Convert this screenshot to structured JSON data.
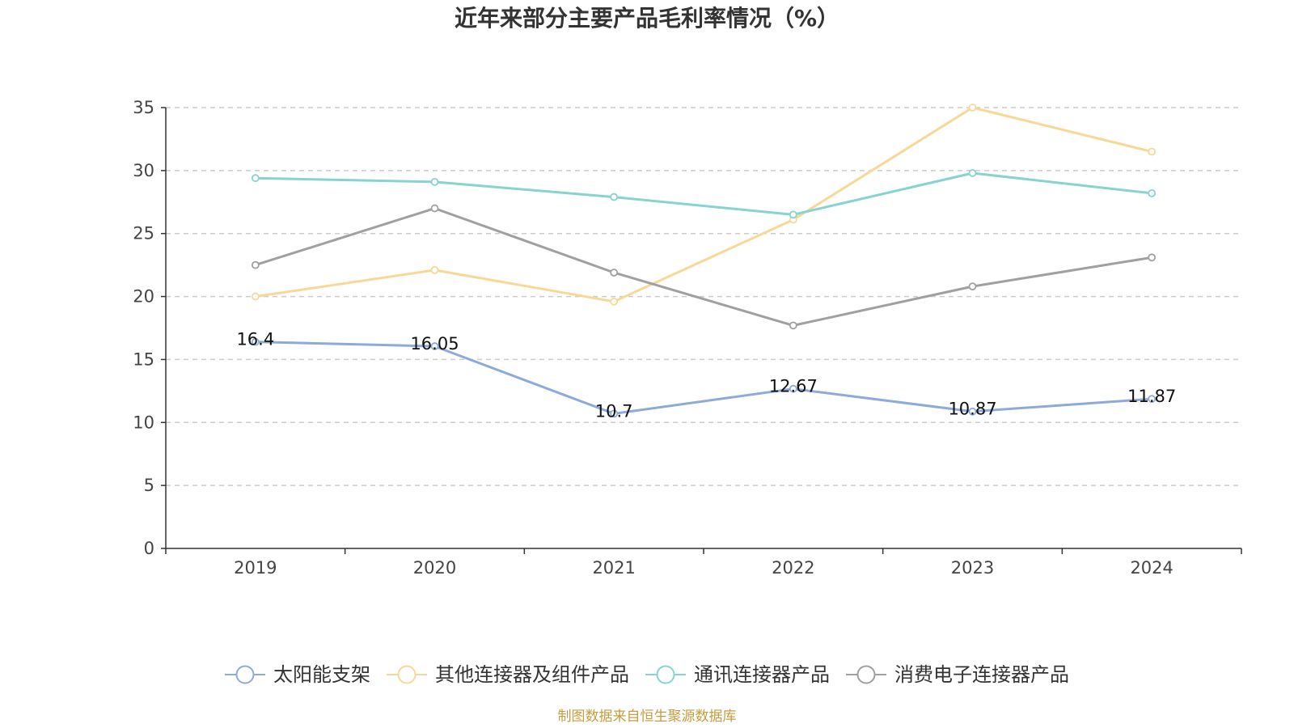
{
  "footer": {
    "source": "制图数据来自恒生聚源数据库"
  },
  "chart_data": {
    "type": "line",
    "title": "近年来部分主要产品毛利率情况（%）",
    "categories": [
      "2019",
      "2020",
      "2021",
      "2022",
      "2023",
      "2024"
    ],
    "ylim": [
      0,
      35
    ],
    "y_ticks": [
      0,
      5,
      10,
      15,
      20,
      25,
      30,
      35
    ],
    "grid": true,
    "legend": "bottom",
    "series": [
      {
        "name": "太阳能支架",
        "color": "#8eaad8",
        "data_labels": true,
        "values": [
          16.4,
          16.05,
          10.7,
          12.67,
          10.87,
          11.87
        ]
      },
      {
        "name": "其他连接器及组件产品",
        "color": "#f8d897",
        "data_labels": false,
        "values": [
          20.0,
          22.1,
          19.6,
          26.1,
          35.0,
          31.5
        ]
      },
      {
        "name": "通讯连接器产品",
        "color": "#86d3d0",
        "data_labels": false,
        "values": [
          29.4,
          29.1,
          27.9,
          26.5,
          29.8,
          28.2
        ]
      },
      {
        "name": "消费电子连接器产品",
        "color": "#a0a0a0",
        "data_labels": false,
        "values": [
          22.5,
          27.0,
          21.9,
          17.7,
          20.8,
          23.1
        ]
      }
    ]
  }
}
